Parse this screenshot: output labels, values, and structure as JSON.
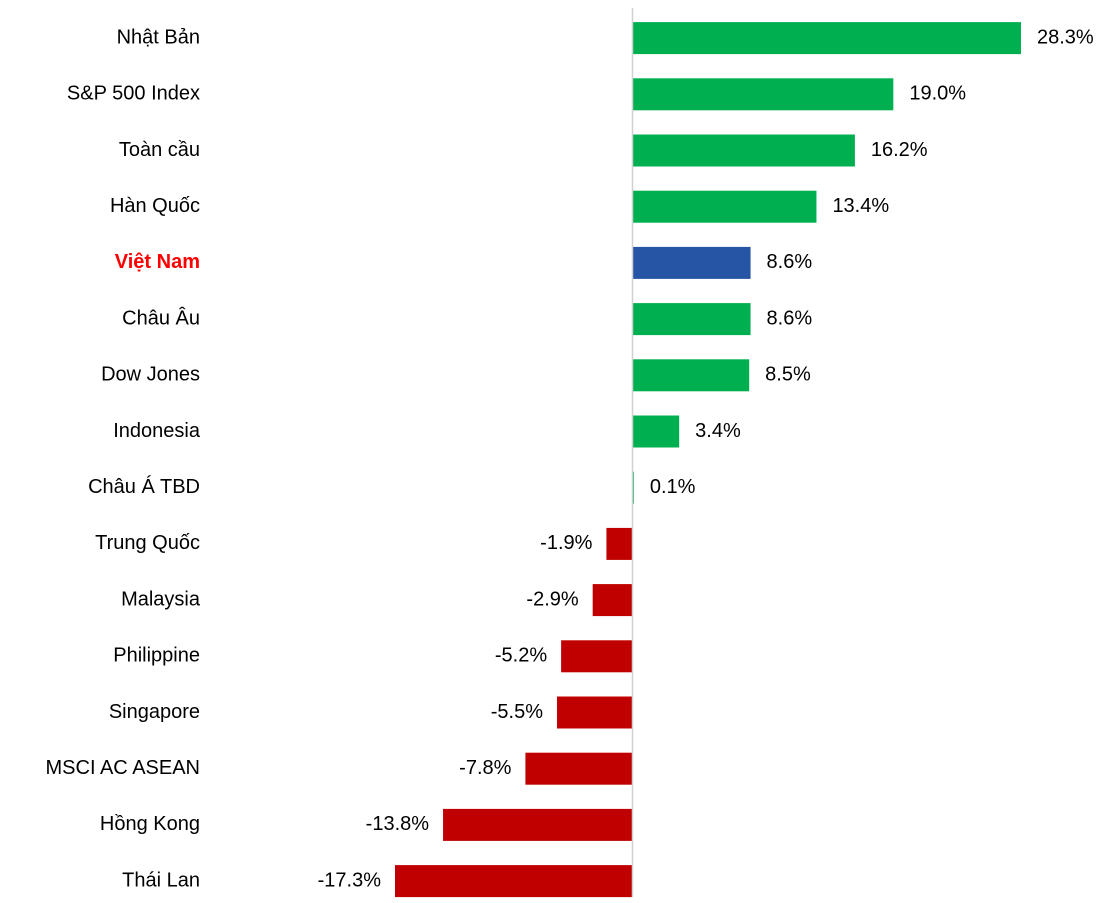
{
  "chart_data": {
    "type": "hbar",
    "categories": [
      "Nhật Bản",
      "S&P 500 Index",
      "Toàn cầu",
      "Hàn Quốc",
      "Việt Nam",
      "Châu Âu",
      "Dow Jones",
      "Indonesia",
      "Châu Á TBD",
      "Trung Quốc",
      "Malaysia",
      "Philippine",
      "Singapore",
      "MSCI AC ASEAN",
      "Hồng Kong",
      "Thái Lan"
    ],
    "values": [
      28.3,
      19.0,
      16.2,
      13.4,
      8.6,
      8.6,
      8.5,
      3.4,
      0.1,
      -1.9,
      -2.9,
      -5.2,
      -5.5,
      -7.8,
      -13.8,
      -17.3
    ],
    "value_labels": [
      "28.3%",
      "19.0%",
      "16.2%",
      "13.4%",
      "8.6%",
      "8.6%",
      "8.5%",
      "3.4%",
      "0.1%",
      "-1.9%",
      "-2.9%",
      "-5.2%",
      "-5.5%",
      "-7.8%",
      "-13.8%",
      "-17.3%"
    ],
    "colors": [
      "#00b050",
      "#00b050",
      "#00b050",
      "#00b050",
      "#2755a6",
      "#00b050",
      "#00b050",
      "#00b050",
      "#00b050",
      "#c00000",
      "#c00000",
      "#c00000",
      "#c00000",
      "#c00000",
      "#c00000",
      "#c00000"
    ],
    "highlight": {
      "index": 4,
      "color": "#ff0000"
    }
  }
}
